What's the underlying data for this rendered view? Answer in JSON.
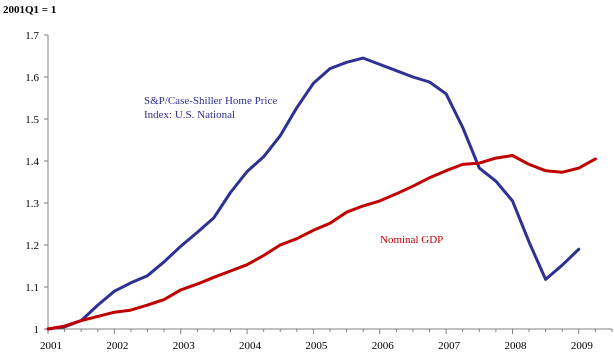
{
  "chart_data": {
    "type": "line",
    "units_label": "2001Q1 = 1",
    "xlim": [
      2001,
      2009.5
    ],
    "ylim": [
      1,
      1.7
    ],
    "x_ticks": [
      "2001",
      "2002",
      "2003",
      "2004",
      "2005",
      "2006",
      "2007",
      "2008",
      "2009"
    ],
    "y_ticks": [
      "1",
      "1.1",
      "1.2",
      "1.3",
      "1.4",
      "1.5",
      "1.6",
      "1.7"
    ],
    "grid": false,
    "series": [
      {
        "name_lines": [
          "S&P/Case-Shiller Home Price",
          "Index: U.S. National"
        ],
        "color": "#2e3192",
        "x": [
          2001.0,
          2001.25,
          2001.5,
          2001.75,
          2002.0,
          2002.25,
          2002.5,
          2002.75,
          2003.0,
          2003.25,
          2003.5,
          2003.75,
          2004.0,
          2004.25,
          2004.5,
          2004.75,
          2005.0,
          2005.25,
          2005.5,
          2005.75,
          2006.0,
          2006.25,
          2006.5,
          2006.75,
          2007.0,
          2007.25,
          2007.5,
          2007.75,
          2008.0,
          2008.25,
          2008.5,
          2008.75,
          2009.0
        ],
        "y": [
          1.0,
          1.005,
          1.02,
          1.057,
          1.09,
          1.11,
          1.127,
          1.16,
          1.197,
          1.23,
          1.265,
          1.325,
          1.375,
          1.41,
          1.46,
          1.527,
          1.585,
          1.62,
          1.635,
          1.645,
          1.63,
          1.615,
          1.6,
          1.588,
          1.56,
          1.48,
          1.383,
          1.352,
          1.305,
          1.207,
          1.118,
          1.152,
          1.19
        ]
      },
      {
        "name": "Nominal GDP",
        "color": "#c00000",
        "x": [
          2001.0,
          2001.25,
          2001.5,
          2001.75,
          2002.0,
          2002.25,
          2002.5,
          2002.75,
          2003.0,
          2003.25,
          2003.5,
          2003.75,
          2004.0,
          2004.25,
          2004.5,
          2004.75,
          2005.0,
          2005.25,
          2005.5,
          2005.75,
          2006.0,
          2006.25,
          2006.5,
          2006.75,
          2007.0,
          2007.25,
          2007.5,
          2007.75,
          2008.0,
          2008.25,
          2008.5,
          2008.75,
          2009.0,
          2009.25
        ],
        "y": [
          1.0,
          1.007,
          1.02,
          1.03,
          1.04,
          1.045,
          1.057,
          1.07,
          1.093,
          1.107,
          1.123,
          1.138,
          1.153,
          1.175,
          1.2,
          1.215,
          1.235,
          1.252,
          1.278,
          1.293,
          1.305,
          1.322,
          1.34,
          1.36,
          1.377,
          1.392,
          1.395,
          1.407,
          1.413,
          1.392,
          1.377,
          1.373,
          1.383,
          1.405
        ]
      }
    ]
  }
}
